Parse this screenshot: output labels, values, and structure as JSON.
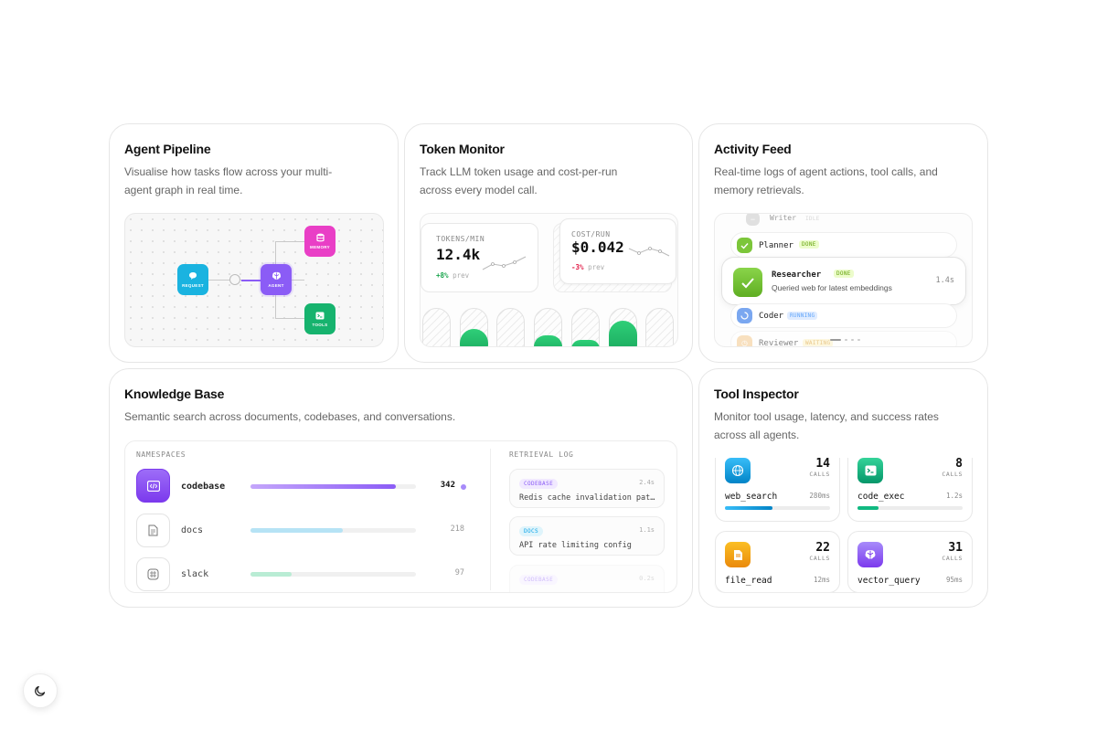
{
  "colors": {
    "request": "#1ab3e0",
    "agent": "#8b5cf6",
    "memory": "#e93fc6",
    "tools": "#16b36e",
    "green": "#22c55e",
    "purple": "#8b5cf6"
  },
  "pipeline": {
    "title": "Agent Pipeline",
    "desc_line1": "Visualise how tasks flow across your multi-",
    "desc_line2": "agent graph in real time.",
    "nodes": {
      "request": "REQUEST",
      "agent": "AGENT",
      "memory": "MEMORY",
      "tools": "TOOLS"
    }
  },
  "token": {
    "title": "Token Monitor",
    "desc_line1": "Track LLM token usage and cost-per-run",
    "desc_line2": "across every model call.",
    "tokens": {
      "label": "TOKENS/MIN",
      "value": "12.4k",
      "delta": "+8%",
      "prev": "prev"
    },
    "cost": {
      "label": "COST/RUN",
      "value": "$0.042",
      "delta": "-3%",
      "prev": "prev"
    },
    "bar_levels": [
      0,
      0.58,
      0,
      0.45,
      0.35,
      0.74,
      0,
      0.12
    ]
  },
  "activity": {
    "title": "Activity Feed",
    "desc_line1": "Real-time logs of agent actions, tool calls, and",
    "desc_line2": "memory retrievals.",
    "rows": [
      {
        "name": "Writer",
        "status": "IDLE"
      },
      {
        "name": "Planner",
        "status": "DONE"
      },
      {
        "name": "Researcher",
        "status": "DONE",
        "detail": "Queried web for latest embeddings",
        "time": "1.4s"
      },
      {
        "name": "Coder",
        "status": "RUNNING"
      },
      {
        "name": "Reviewer",
        "status": "WAITING"
      }
    ]
  },
  "knowledge": {
    "title": "Knowledge Base",
    "desc": "Semantic search across documents, codebases, and conversations.",
    "namespaces_label": "NAMESPACES",
    "retrieval_label": "RETRIEVAL LOG",
    "namespaces": [
      {
        "name": "codebase",
        "count": "342",
        "fill": 0.88
      },
      {
        "name": "docs",
        "count": "218",
        "fill": 0.56
      },
      {
        "name": "slack",
        "count": "97",
        "fill": 0.25
      }
    ],
    "logs": [
      {
        "tag": "CODEBASE",
        "time": "2.4s",
        "text": "Redis cache invalidation patterns"
      },
      {
        "tag": "DOCS",
        "time": "1.1s",
        "text": "API rate limiting config"
      },
      {
        "tag": "CODEBASE",
        "time": "0.2s",
        "text": ""
      }
    ]
  },
  "tools": {
    "title": "Tool Inspector",
    "desc_line1": "Monitor tool usage, latency, and success rates",
    "desc_line2": "across all agents.",
    "calls_label": "CALLS",
    "items": [
      {
        "name": "web_search",
        "calls": "14",
        "latency": "280ms",
        "fill": 0.45
      },
      {
        "name": "code_exec",
        "calls": "8",
        "latency": "1.2s",
        "fill": 0.2
      },
      {
        "name": "file_read",
        "calls": "22",
        "latency": "12ms",
        "fill": 0.0
      },
      {
        "name": "vector_query",
        "calls": "31",
        "latency": "95ms",
        "fill": 0.0
      }
    ]
  },
  "icons": {
    "theme": "moon-icon"
  }
}
